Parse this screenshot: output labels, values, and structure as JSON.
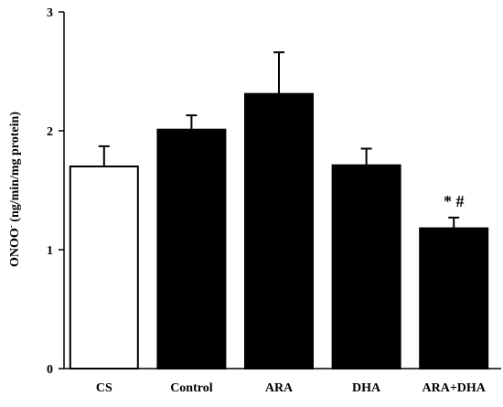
{
  "chart_data": {
    "type": "bar",
    "title": "",
    "xlabel": "",
    "ylabel": {
      "main": "ONOO",
      "superscript": "-",
      "rest": " (ng/min/mg protein)"
    },
    "categories": [
      "CS",
      "Control",
      "ARA",
      "DHA",
      "ARA+DHA"
    ],
    "values": [
      1.7,
      2.01,
      2.31,
      1.71,
      1.18
    ],
    "errors": [
      0.17,
      0.12,
      0.35,
      0.14,
      0.09
    ],
    "fills": [
      "#ffffff",
      "#000000",
      "#000000",
      "#000000",
      "#000000"
    ],
    "annotations": [
      {
        "category": "ARA+DHA",
        "text": "* #"
      }
    ],
    "ylim": [
      0,
      3
    ],
    "yticks": [
      "0",
      "1",
      "2",
      "3"
    ],
    "grid": false,
    "legend": "none"
  }
}
